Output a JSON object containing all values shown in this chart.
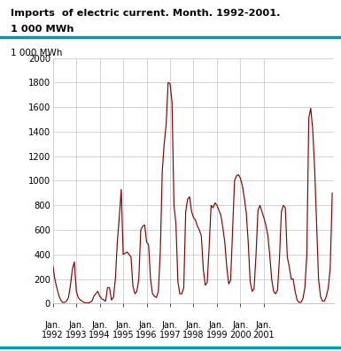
{
  "title_line1": "Imports  of electric current. Month. 1992-2001.",
  "title_line2": "1 000 MWh",
  "ylabel": "1 000 MWh",
  "ylim": [
    0,
    2000
  ],
  "yticks": [
    0,
    200,
    400,
    600,
    800,
    1000,
    1200,
    1400,
    1600,
    1800,
    2000
  ],
  "line_color": "#8B0000",
  "bg_color": "#ffffff",
  "grid_color": "#cccccc",
  "accent_color": "#009aa8",
  "values": [
    310,
    200,
    130,
    70,
    30,
    10,
    10,
    20,
    50,
    150,
    280,
    340,
    100,
    50,
    30,
    20,
    10,
    5,
    5,
    10,
    20,
    60,
    80,
    100,
    60,
    40,
    30,
    20,
    130,
    130,
    30,
    50,
    200,
    500,
    700,
    930,
    400,
    410,
    420,
    400,
    380,
    140,
    80,
    100,
    200,
    600,
    630,
    640,
    500,
    480,
    200,
    80,
    60,
    50,
    100,
    420,
    1080,
    1300,
    1460,
    1800,
    1790,
    1640,
    800,
    650,
    180,
    80,
    80,
    130,
    750,
    850,
    870,
    750,
    700,
    680,
    630,
    600,
    550,
    280,
    150,
    170,
    460,
    800,
    780,
    820,
    800,
    760,
    720,
    620,
    500,
    300,
    160,
    190,
    600,
    1000,
    1040,
    1050,
    1020,
    960,
    860,
    740,
    500,
    180,
    100,
    120,
    400,
    760,
    800,
    750,
    700,
    640,
    560,
    400,
    200,
    100,
    80,
    110,
    370,
    750,
    800,
    780,
    380,
    300,
    200,
    200,
    100,
    30,
    10,
    10,
    40,
    130,
    400,
    1510,
    1590,
    1420,
    1100,
    650,
    200,
    60,
    20,
    20,
    60,
    130,
    300,
    900
  ]
}
